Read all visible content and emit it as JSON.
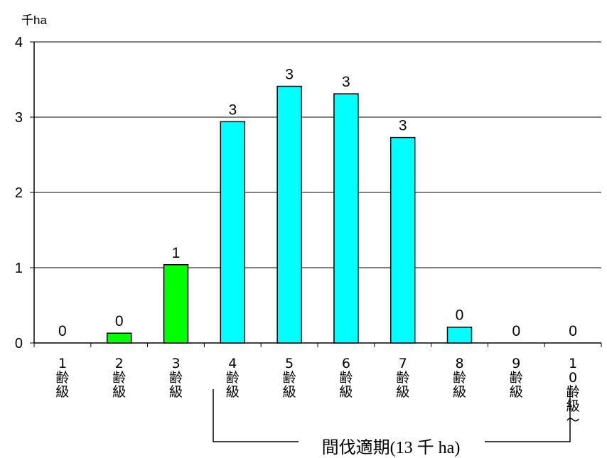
{
  "chart_data": {
    "type": "bar",
    "ylabel": "千ha",
    "ylim": [
      0,
      4
    ],
    "yticks": [
      "0",
      "1",
      "2",
      "3",
      "4"
    ],
    "grid": true,
    "categories": [
      "1齢級",
      "2齢級",
      "3齢級",
      "4齢級",
      "5齢級",
      "6齢級",
      "7齢級",
      "8齢級",
      "9齢級",
      "10齢級〜"
    ],
    "category_labels": [
      [
        "1",
        "齢",
        "級"
      ],
      [
        "2",
        "齢",
        "級"
      ],
      [
        "3",
        "齢",
        "級"
      ],
      [
        "4",
        "齢",
        "級"
      ],
      [
        "5",
        "齢",
        "級"
      ],
      [
        "6",
        "齢",
        "級"
      ],
      [
        "7",
        "齢",
        "級"
      ],
      [
        "8",
        "齢",
        "級"
      ],
      [
        "9",
        "齢",
        "級"
      ],
      [
        "1",
        "0",
        "齢",
        "級",
        "〜"
      ]
    ],
    "values": [
      0,
      0.13,
      1.04,
      2.94,
      3.41,
      3.31,
      2.73,
      0.21,
      0,
      0
    ],
    "data_labels": [
      "0",
      "0",
      "1",
      "3",
      "3",
      "3",
      "3",
      "0",
      "0",
      "0"
    ],
    "bar_colors": [
      "#00ff00",
      "#00ff00",
      "#00ff00",
      "#00ffff",
      "#00ffff",
      "#00ffff",
      "#00ffff",
      "#00ffff",
      "#00ffff",
      "#00ffff"
    ],
    "annotation": "間伐適期(13 千 ha)"
  }
}
